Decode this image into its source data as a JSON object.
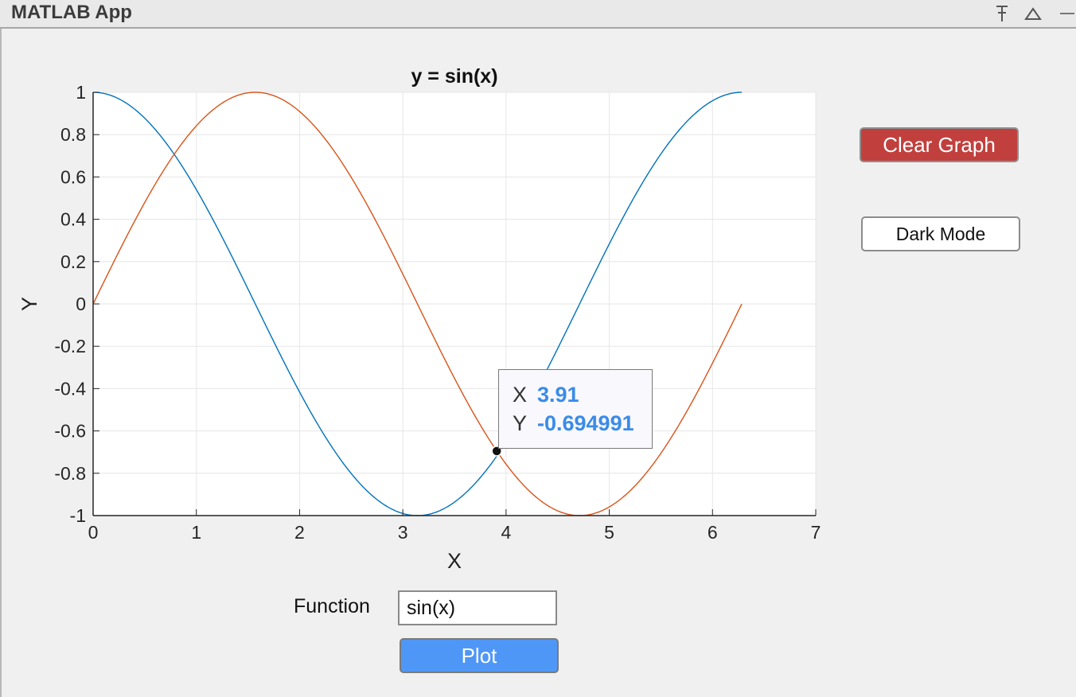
{
  "window": {
    "title": "MATLAB App"
  },
  "titlebar_icons": [
    "pin-icon",
    "collapse-icon",
    "minimize-icon"
  ],
  "controls": {
    "clear_label": "Clear Graph",
    "dark_label": "Dark Mode",
    "function_label": "Function",
    "function_value": "sin(x)",
    "plot_label": "Plot"
  },
  "datatip": {
    "x_key": "X",
    "x_value": "3.91",
    "y_key": "Y",
    "y_value": "-0.694991"
  },
  "colors": {
    "clear_button": "#c1403d",
    "plot_button": "#4f97f7",
    "series_cos": "#0072bd",
    "series_sin": "#d95319",
    "datatip_value": "#3a8be8"
  },
  "chart_data": {
    "type": "line",
    "title": "y = sin(x)",
    "xlabel": "X",
    "ylabel": "Y",
    "xlim": [
      0,
      7
    ],
    "ylim": [
      -1,
      1
    ],
    "xticks": [
      0,
      1,
      2,
      3,
      4,
      5,
      6,
      7
    ],
    "yticks": [
      -1,
      -0.8,
      -0.6,
      -0.4,
      -0.2,
      0,
      0.2,
      0.4,
      0.6,
      0.8,
      1
    ],
    "grid": true,
    "x_range": [
      0,
      6.2832
    ],
    "series": [
      {
        "function": "cos(x)",
        "color": "#0072bd"
      },
      {
        "function": "sin(x)",
        "color": "#d95319"
      }
    ],
    "datatip_point": {
      "x": 3.91,
      "y": -0.694991
    }
  }
}
